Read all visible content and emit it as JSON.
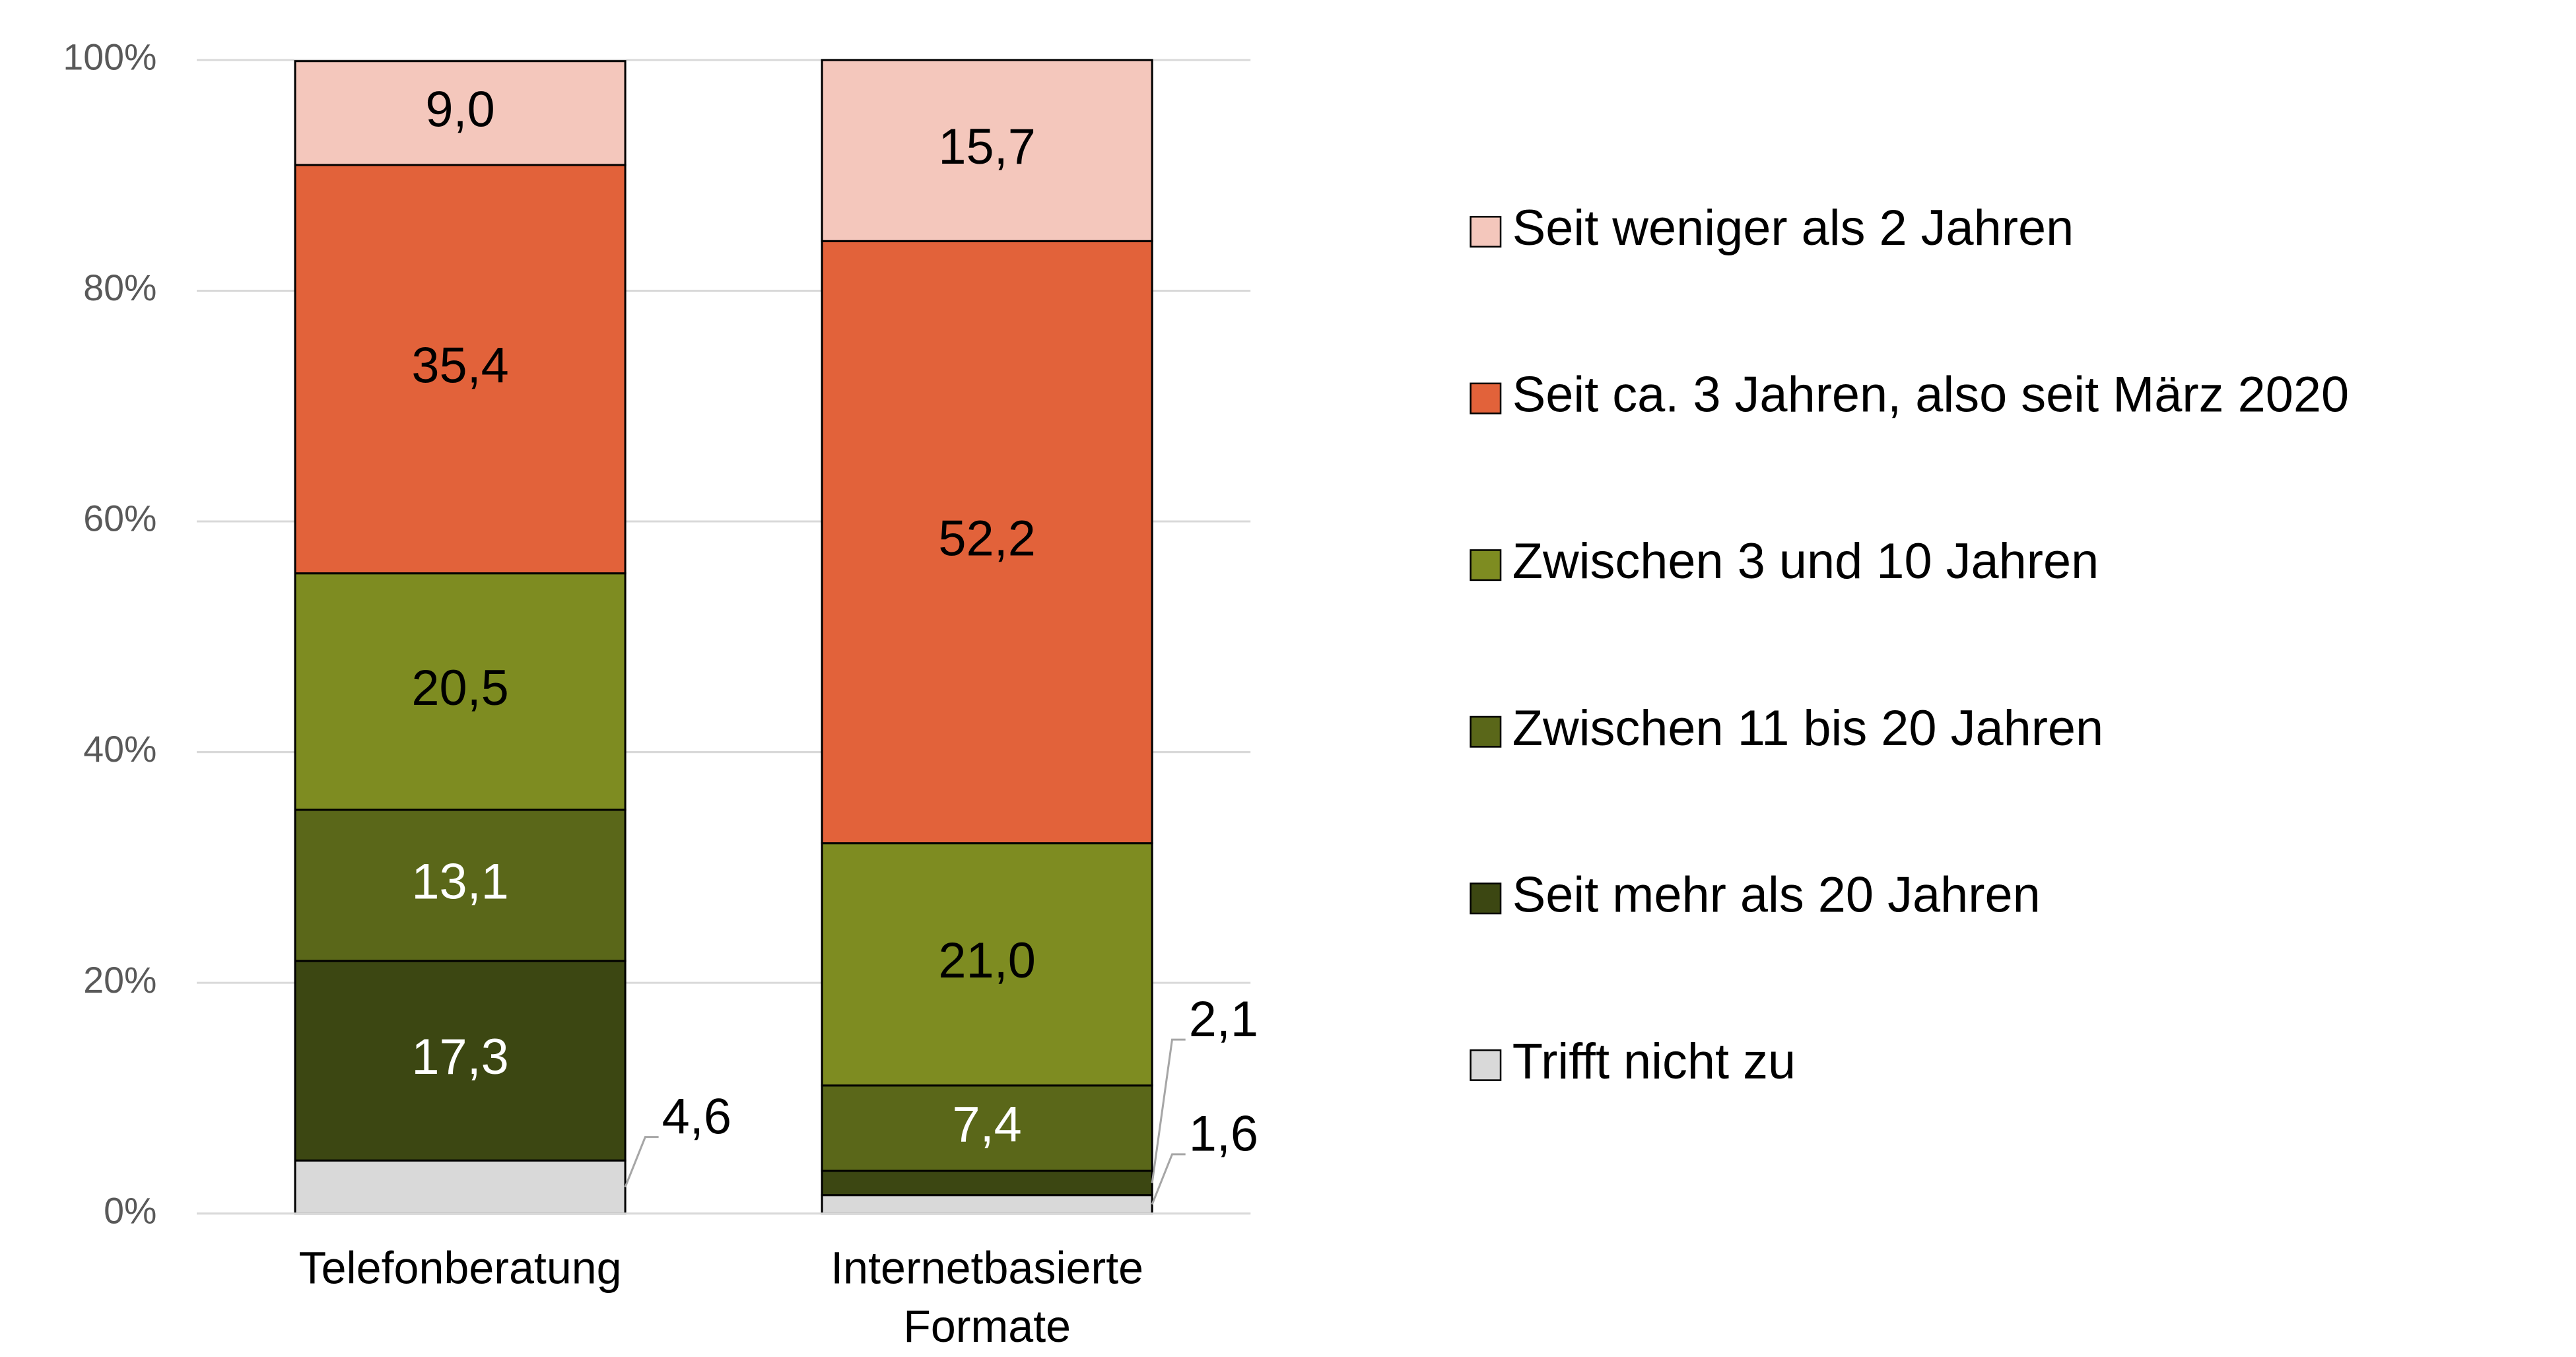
{
  "chart_data": {
    "type": "stacked_bar",
    "categories": [
      "Telefonberatung",
      "Internetbasierte Formate"
    ],
    "series": [
      {
        "name": "Trifft nicht zu",
        "color": "#d9d9d9",
        "values": [
          4.6,
          1.6
        ],
        "value_labels": [
          "4,6",
          "1,6"
        ]
      },
      {
        "name": "Seit mehr als 20 Jahren",
        "color": "#3c4712",
        "values": [
          17.3,
          2.1
        ],
        "value_labels": [
          "17,3",
          "2,1"
        ]
      },
      {
        "name": "Zwischen 11 bis 20 Jahren",
        "color": "#5a6719",
        "values": [
          13.1,
          7.4
        ],
        "value_labels": [
          "13,1",
          "7,4"
        ]
      },
      {
        "name": "Zwischen 3 und 10 Jahren",
        "color": "#7e8c21",
        "values": [
          20.5,
          21.0
        ],
        "value_labels": [
          "20,5",
          "21,0"
        ]
      },
      {
        "name": "Seit ca. 3 Jahren, also seit März 2020",
        "color": "#e2623a",
        "values": [
          35.4,
          52.2
        ],
        "value_labels": [
          "35,4",
          "52,2"
        ]
      },
      {
        "name": "Seit weniger als 2 Jahren",
        "color": "#f4c7bc",
        "values": [
          9.0,
          15.7
        ],
        "value_labels": [
          "9,0",
          "15,7"
        ]
      }
    ],
    "ylim": [
      0,
      100
    ],
    "yticks": [
      {
        "value": 0,
        "label": "0%"
      },
      {
        "value": 20,
        "label": "20%"
      },
      {
        "value": 40,
        "label": "40%"
      },
      {
        "value": 60,
        "label": "60%"
      },
      {
        "value": 80,
        "label": "80%"
      },
      {
        "value": 100,
        "label": "100%"
      }
    ],
    "grid": true,
    "legend": "right"
  }
}
